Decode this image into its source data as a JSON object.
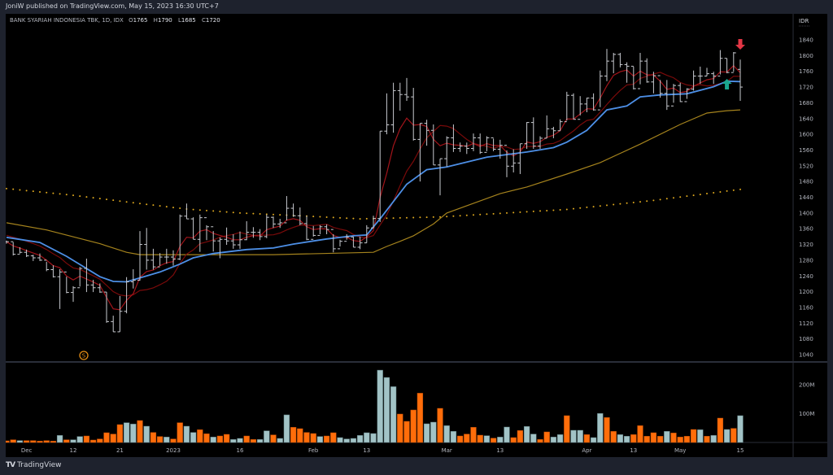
{
  "header": {
    "published": "JoniW published on TradingView.com, May 15, 2023 16:30 UTC+7",
    "symbol": "BANK SYARIAH INDONESIA TBK, 1D, IDX",
    "o_label": "O",
    "o_value": "1765",
    "h_label": "H",
    "h_value": "1790",
    "l_label": "L",
    "l_value": "1685",
    "c_label": "C",
    "c_value": "1720"
  },
  "footer": {
    "brand": "TradingView",
    "logo": "TV"
  },
  "colors": {
    "bar": "#c9cbd1",
    "vol_up": "#a2c3c6",
    "vol_down": "#ff6d0a",
    "ma_blue": "#4d8fe6",
    "ma_red_fast": "#a3141a",
    "ma_red_slow": "#7a0a0a",
    "ma_gold": "#a5831d",
    "ma_dotted": "#e0a91e",
    "signal_down": "#e23645",
    "signal_up": "#1aa68f",
    "dividend": "#e08a14"
  },
  "chart_data": {
    "type": "ohlc",
    "title": "BANK SYARIAH INDONESIA TBK, 1D, IDX",
    "currency_label": "IDR",
    "ylim": [
      1020,
      1860
    ],
    "y_ticks": [
      "1840",
      "1800",
      "1760",
      "1720",
      "1680",
      "1640",
      "1600",
      "1560",
      "1520",
      "1480",
      "1440",
      "1400",
      "1360",
      "1320",
      "1280",
      "1240",
      "1200",
      "1160",
      "1120",
      "1080",
      "1040"
    ],
    "volume_ticks": [
      {
        "label": "200M",
        "value": 200
      },
      {
        "label": "100M",
        "value": 100
      }
    ],
    "x_ticks": [
      {
        "label": "Dec",
        "bar": 3
      },
      {
        "label": "12",
        "bar": 10
      },
      {
        "label": "21",
        "bar": 17
      },
      {
        "label": "2023",
        "bar": 25
      },
      {
        "label": "16",
        "bar": 35
      },
      {
        "label": "Feb",
        "bar": 46
      },
      {
        "label": "13",
        "bar": 54
      },
      {
        "label": "Mar",
        "bar": 66
      },
      {
        "label": "13",
        "bar": 74
      },
      {
        "label": "Apr",
        "bar": 87
      },
      {
        "label": "13",
        "bar": 94
      },
      {
        "label": "May",
        "bar": 101
      },
      {
        "label": "15",
        "bar": 110
      }
    ],
    "last_open": 1765,
    "hlc": [
      [
        1330,
        1322,
        1327
      ],
      [
        1326,
        1292,
        1295
      ],
      [
        1313,
        1297,
        1300
      ],
      [
        1307,
        1288,
        1291
      ],
      [
        1294,
        1278,
        1286
      ],
      [
        1297,
        1278,
        1280
      ],
      [
        1276,
        1252,
        1256
      ],
      [
        1267,
        1236,
        1238
      ],
      [
        1257,
        1156,
        1250
      ],
      [
        1238,
        1196,
        1198
      ],
      [
        1214,
        1174,
        1210
      ],
      [
        1263,
        1213,
        1259
      ],
      [
        1284,
        1199,
        1217
      ],
      [
        1230,
        1199,
        1210
      ],
      [
        1221,
        1197,
        1199
      ],
      [
        1199,
        1121,
        1124
      ],
      [
        1139,
        1098,
        1098
      ],
      [
        1189,
        1098,
        1150
      ],
      [
        1237,
        1145,
        1225
      ],
      [
        1257,
        1208,
        1229
      ],
      [
        1354,
        1228,
        1320
      ],
      [
        1362,
        1256,
        1280
      ],
      [
        1309,
        1256,
        1263
      ],
      [
        1298,
        1266,
        1288
      ],
      [
        1309,
        1271,
        1288
      ],
      [
        1305,
        1266,
        1283
      ],
      [
        1396,
        1280,
        1392
      ],
      [
        1424,
        1385,
        1385
      ],
      [
        1389,
        1333,
        1333
      ],
      [
        1396,
        1301,
        1388
      ],
      [
        1369,
        1331,
        1365
      ],
      [
        1354,
        1302,
        1329
      ],
      [
        1338,
        1285,
        1333
      ],
      [
        1363,
        1319,
        1329
      ],
      [
        1346,
        1309,
        1319
      ],
      [
        1353,
        1309,
        1332
      ],
      [
        1379,
        1331,
        1351
      ],
      [
        1364,
        1337,
        1351
      ],
      [
        1359,
        1331,
        1340
      ],
      [
        1396,
        1336,
        1389
      ],
      [
        1391,
        1362,
        1372
      ],
      [
        1385,
        1362,
        1375
      ],
      [
        1443,
        1381,
        1412
      ],
      [
        1424,
        1390,
        1393
      ],
      [
        1414,
        1369,
        1373
      ],
      [
        1393,
        1331,
        1333
      ],
      [
        1367,
        1340,
        1343
      ],
      [
        1369,
        1346,
        1365
      ],
      [
        1371,
        1346,
        1358
      ],
      [
        1346,
        1300,
        1309
      ],
      [
        1332,
        1315,
        1328
      ],
      [
        1346,
        1332,
        1339
      ],
      [
        1340,
        1313,
        1313
      ],
      [
        1340,
        1308,
        1324
      ],
      [
        1369,
        1324,
        1362
      ],
      [
        1393,
        1362,
        1386
      ],
      [
        1608,
        1377,
        1608
      ],
      [
        1704,
        1600,
        1624
      ],
      [
        1731,
        1604,
        1711
      ],
      [
        1731,
        1660,
        1701
      ],
      [
        1743,
        1685,
        1695
      ],
      [
        1718,
        1584,
        1587
      ],
      [
        1628,
        1480,
        1628
      ],
      [
        1637,
        1571,
        1610
      ],
      [
        1625,
        1522,
        1522
      ],
      [
        1538,
        1445,
        1538
      ],
      [
        1595,
        1518,
        1591
      ],
      [
        1625,
        1555,
        1564
      ],
      [
        1579,
        1555,
        1570
      ],
      [
        1579,
        1550,
        1564
      ],
      [
        1602,
        1557,
        1591
      ],
      [
        1602,
        1550,
        1554
      ],
      [
        1595,
        1557,
        1591
      ],
      [
        1589,
        1557,
        1562
      ],
      [
        1586,
        1538,
        1572
      ],
      [
        1559,
        1491,
        1519
      ],
      [
        1562,
        1503,
        1527
      ],
      [
        1576,
        1499,
        1576
      ],
      [
        1631,
        1563,
        1630
      ],
      [
        1643,
        1563,
        1570
      ],
      [
        1595,
        1563,
        1590
      ],
      [
        1648,
        1590,
        1614
      ],
      [
        1619,
        1590,
        1609
      ],
      [
        1638,
        1609,
        1632
      ],
      [
        1708,
        1635,
        1699
      ],
      [
        1704,
        1638,
        1638
      ],
      [
        1697,
        1648,
        1677
      ],
      [
        1693,
        1656,
        1692
      ],
      [
        1704,
        1660,
        1662
      ],
      [
        1762,
        1669,
        1748
      ],
      [
        1817,
        1735,
        1786
      ],
      [
        1807,
        1755,
        1803
      ],
      [
        1807,
        1770,
        1777
      ],
      [
        1783,
        1731,
        1773
      ],
      [
        1772,
        1714,
        1716
      ],
      [
        1807,
        1727,
        1786
      ],
      [
        1793,
        1731,
        1733
      ],
      [
        1759,
        1704,
        1749
      ],
      [
        1738,
        1693,
        1704
      ],
      [
        1738,
        1662,
        1672
      ],
      [
        1728,
        1680,
        1724
      ],
      [
        1731,
        1682,
        1683
      ],
      [
        1717,
        1690,
        1715
      ],
      [
        1762,
        1711,
        1748
      ],
      [
        1772,
        1728,
        1748
      ],
      [
        1769,
        1748,
        1754
      ],
      [
        1759,
        1728,
        1748
      ],
      [
        1814,
        1752,
        1793
      ],
      [
        1793,
        1755,
        1757
      ],
      [
        1809,
        1759,
        1807
      ],
      [
        1790,
        1685,
        1720
      ]
    ],
    "volume_m": [
      6,
      10,
      7,
      7,
      7,
      5,
      7,
      5,
      26,
      10,
      10,
      22,
      24,
      9,
      13,
      36,
      31,
      66,
      73,
      68,
      81,
      60,
      37,
      22,
      20,
      13,
      73,
      60,
      37,
      47,
      32,
      20,
      24,
      30,
      11,
      15,
      24,
      11,
      11,
      43,
      28,
      15,
      102,
      56,
      51,
      37,
      33,
      22,
      24,
      36,
      18,
      13,
      15,
      26,
      36,
      33,
      267,
      240,
      206,
      105,
      78,
      120,
      182,
      69,
      75,
      126,
      62,
      41,
      24,
      31,
      56,
      27,
      25,
      16,
      20,
      57,
      18,
      44,
      59,
      31,
      11,
      39,
      20,
      29,
      99,
      45,
      45,
      29,
      18,
      107,
      92,
      41,
      29,
      23,
      29,
      62,
      23,
      36,
      23,
      41,
      35,
      20,
      23,
      48,
      47,
      23,
      26,
      90,
      48,
      52,
      99
    ],
    "volume_dir": "dduddddduduudddddduududdudduuddudduudduuduuddddudduuuuuuuuudddduuduudddduduudduudduuduuduudduuddddduddddudududuuuuudud",
    "ma_blue": [
      [
        0,
        1338
      ],
      [
        5,
        1325
      ],
      [
        9,
        1290
      ],
      [
        14,
        1238
      ],
      [
        16,
        1226
      ],
      [
        18,
        1225
      ],
      [
        21,
        1240
      ],
      [
        23,
        1250
      ],
      [
        26,
        1270
      ],
      [
        28,
        1286
      ],
      [
        31,
        1297
      ],
      [
        36,
        1307
      ],
      [
        40,
        1311
      ],
      [
        43,
        1321
      ],
      [
        48,
        1334
      ],
      [
        52,
        1342
      ],
      [
        54,
        1344
      ],
      [
        56,
        1385
      ],
      [
        60,
        1473
      ],
      [
        63,
        1510
      ],
      [
        66,
        1517
      ],
      [
        72,
        1542
      ],
      [
        78,
        1555
      ],
      [
        82,
        1566
      ],
      [
        84,
        1580
      ],
      [
        87,
        1610
      ],
      [
        90,
        1662
      ],
      [
        93,
        1672
      ],
      [
        95,
        1695
      ],
      [
        98,
        1700
      ],
      [
        102,
        1703
      ],
      [
        106,
        1721
      ],
      [
        108,
        1735
      ],
      [
        110,
        1734
      ]
    ],
    "ma_gold": [
      [
        0,
        1375
      ],
      [
        6,
        1357
      ],
      [
        14,
        1322
      ],
      [
        18,
        1300
      ],
      [
        20,
        1294
      ],
      [
        40,
        1294
      ],
      [
        55,
        1300
      ],
      [
        57,
        1315
      ],
      [
        59,
        1328
      ],
      [
        61,
        1342
      ],
      [
        64,
        1372
      ],
      [
        66,
        1400
      ],
      [
        74,
        1449
      ],
      [
        78,
        1466
      ],
      [
        84,
        1499
      ],
      [
        89,
        1528
      ],
      [
        95,
        1575
      ],
      [
        101,
        1625
      ],
      [
        105,
        1654
      ],
      [
        108,
        1660
      ],
      [
        110,
        1662
      ]
    ],
    "ma_dotted": [
      [
        0,
        1462
      ],
      [
        10,
        1445
      ],
      [
        20,
        1424
      ],
      [
        27,
        1410
      ],
      [
        35,
        1400
      ],
      [
        44,
        1393
      ],
      [
        53,
        1385
      ],
      [
        65,
        1390
      ],
      [
        84,
        1409
      ],
      [
        97,
        1432
      ],
      [
        110,
        1460
      ]
    ],
    "markers": [
      {
        "type": "dividend",
        "label": "S",
        "bar": 12
      },
      {
        "type": "signal-up",
        "bar": 108
      },
      {
        "type": "signal-down",
        "bar": 110
      }
    ]
  }
}
